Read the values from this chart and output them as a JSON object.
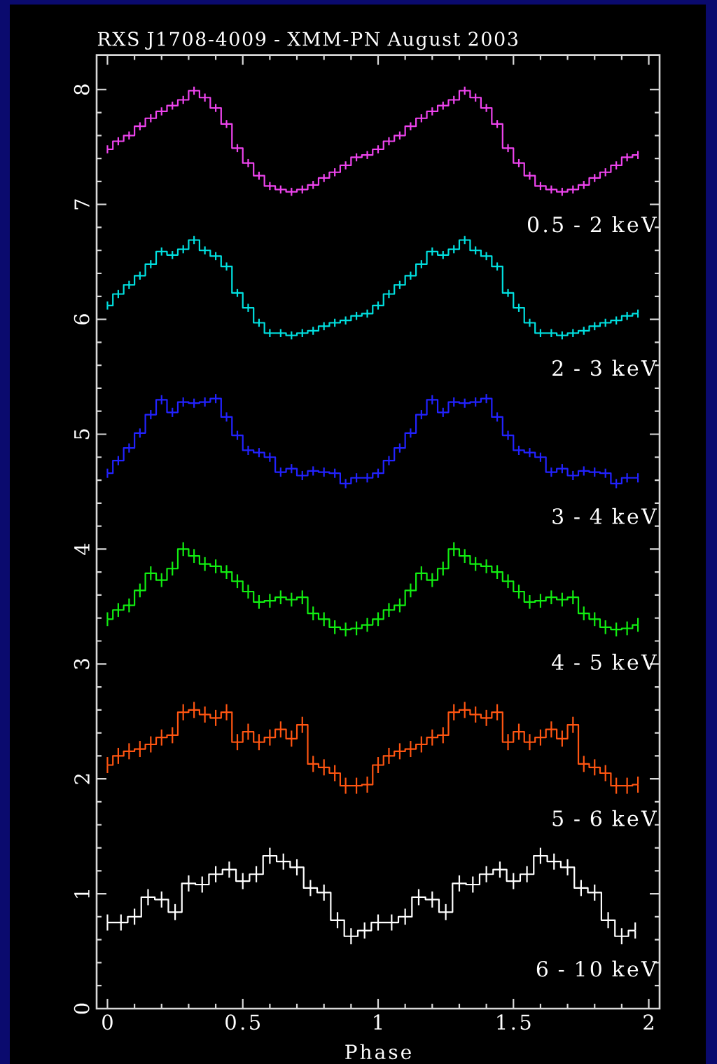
{
  "chart_data": {
    "type": "step",
    "title": "RXS J1708-4009 - XMM-PN August 2003",
    "xlabel": "Phase",
    "xlim": [
      -0.04,
      2.04
    ],
    "ylim": [
      0,
      8.3
    ],
    "xticks": [
      0,
      0.5,
      1,
      1.5,
      2
    ],
    "yticks": [
      0,
      1,
      2,
      3,
      4,
      5,
      6,
      7,
      8
    ],
    "x": [
      0,
      0.04,
      0.08,
      0.12,
      0.16,
      0.2,
      0.24,
      0.28,
      0.32,
      0.36,
      0.4,
      0.44,
      0.48,
      0.52,
      0.56,
      0.6,
      0.64,
      0.68,
      0.72,
      0.76,
      0.8,
      0.84,
      0.88,
      0.92,
      0.96,
      1,
      1.04,
      1.08,
      1.12,
      1.16,
      1.2,
      1.24,
      1.28,
      1.32,
      1.36,
      1.4,
      1.44,
      1.48,
      1.52,
      1.56,
      1.6,
      1.64,
      1.68,
      1.72,
      1.76,
      1.8,
      1.84,
      1.88,
      1.92,
      1.96
    ],
    "series": [
      {
        "name": "0.5 - 2 keV",
        "color": "#ee44ee",
        "values": [
          7.48,
          7.55,
          7.6,
          7.68,
          7.75,
          7.81,
          7.86,
          7.91,
          7.99,
          7.93,
          7.84,
          7.7,
          7.49,
          7.36,
          7.25,
          7.16,
          7.13,
          7.11,
          7.13,
          7.17,
          7.23,
          7.28,
          7.34,
          7.41,
          7.43,
          7.48,
          7.55,
          7.6,
          7.68,
          7.75,
          7.81,
          7.86,
          7.91,
          7.99,
          7.93,
          7.84,
          7.7,
          7.49,
          7.36,
          7.25,
          7.16,
          7.13,
          7.11,
          7.13,
          7.17,
          7.23,
          7.28,
          7.34,
          7.41,
          7.43
        ],
        "errors": [
          0.035,
          0.035,
          0.035,
          0.035,
          0.035,
          0.035,
          0.035,
          0.035,
          0.035,
          0.035,
          0.035,
          0.035,
          0.035,
          0.035,
          0.035,
          0.035,
          0.035,
          0.035,
          0.035,
          0.035,
          0.035,
          0.035,
          0.035,
          0.035,
          0.035,
          0.035,
          0.035,
          0.035,
          0.035,
          0.035,
          0.035,
          0.035,
          0.035,
          0.035,
          0.035,
          0.035,
          0.035,
          0.035,
          0.035,
          0.035,
          0.035,
          0.035,
          0.035,
          0.035,
          0.035,
          0.035,
          0.035,
          0.035,
          0.035,
          0.035
        ]
      },
      {
        "name": "2 - 3 keV",
        "color": "#00e0e0",
        "values": [
          6.12,
          6.22,
          6.3,
          6.38,
          6.48,
          6.59,
          6.56,
          6.61,
          6.69,
          6.6,
          6.55,
          6.46,
          6.23,
          6.1,
          5.97,
          5.88,
          5.88,
          5.86,
          5.88,
          5.9,
          5.94,
          5.97,
          5.99,
          6.03,
          6.05,
          6.12,
          6.22,
          6.3,
          6.38,
          6.48,
          6.59,
          6.56,
          6.61,
          6.69,
          6.6,
          6.55,
          6.46,
          6.23,
          6.1,
          5.97,
          5.88,
          5.88,
          5.86,
          5.88,
          5.9,
          5.94,
          5.97,
          5.99,
          6.03,
          6.05
        ],
        "errors": [
          0.035,
          0.035,
          0.035,
          0.035,
          0.035,
          0.035,
          0.035,
          0.035,
          0.035,
          0.035,
          0.035,
          0.035,
          0.035,
          0.035,
          0.035,
          0.035,
          0.035,
          0.035,
          0.035,
          0.035,
          0.035,
          0.035,
          0.035,
          0.035,
          0.035,
          0.035,
          0.035,
          0.035,
          0.035,
          0.035,
          0.035,
          0.035,
          0.035,
          0.035,
          0.035,
          0.035,
          0.035,
          0.035,
          0.035,
          0.035,
          0.035,
          0.035,
          0.035,
          0.035,
          0.035,
          0.035,
          0.035,
          0.035,
          0.035,
          0.035
        ]
      },
      {
        "name": "3 - 4 keV",
        "color": "#2222ff",
        "values": [
          4.66,
          4.77,
          4.88,
          5.01,
          5.17,
          5.3,
          5.19,
          5.28,
          5.27,
          5.28,
          5.31,
          5.15,
          4.99,
          4.86,
          4.84,
          4.8,
          4.67,
          4.7,
          4.64,
          4.68,
          4.67,
          4.66,
          4.57,
          4.62,
          4.62,
          4.66,
          4.77,
          4.88,
          5.01,
          5.17,
          5.3,
          5.19,
          5.28,
          5.27,
          5.28,
          5.31,
          5.15,
          4.99,
          4.86,
          4.84,
          4.8,
          4.67,
          4.7,
          4.64,
          4.68,
          4.67,
          4.66,
          4.57,
          4.62,
          4.62
        ],
        "errors": [
          0.04,
          0.04,
          0.04,
          0.04,
          0.04,
          0.04,
          0.04,
          0.04,
          0.04,
          0.04,
          0.04,
          0.04,
          0.04,
          0.04,
          0.04,
          0.04,
          0.04,
          0.04,
          0.04,
          0.04,
          0.04,
          0.04,
          0.04,
          0.04,
          0.04,
          0.04,
          0.04,
          0.04,
          0.04,
          0.04,
          0.04,
          0.04,
          0.04,
          0.04,
          0.04,
          0.04,
          0.04,
          0.04,
          0.04,
          0.04,
          0.04,
          0.04,
          0.04,
          0.04,
          0.04,
          0.04,
          0.04,
          0.04,
          0.04,
          0.04
        ]
      },
      {
        "name": "4 - 5 keV",
        "color": "#11ee11",
        "values": [
          3.39,
          3.47,
          3.51,
          3.64,
          3.79,
          3.73,
          3.83,
          4.0,
          3.94,
          3.87,
          3.85,
          3.8,
          3.72,
          3.63,
          3.54,
          3.55,
          3.58,
          3.56,
          3.58,
          3.44,
          3.39,
          3.32,
          3.3,
          3.31,
          3.34,
          3.39,
          3.47,
          3.51,
          3.64,
          3.79,
          3.73,
          3.83,
          4.0,
          3.94,
          3.87,
          3.85,
          3.8,
          3.72,
          3.63,
          3.54,
          3.55,
          3.58,
          3.56,
          3.58,
          3.44,
          3.39,
          3.32,
          3.3,
          3.31,
          3.34
        ],
        "errors": [
          0.06,
          0.06,
          0.06,
          0.06,
          0.06,
          0.06,
          0.06,
          0.06,
          0.06,
          0.06,
          0.06,
          0.06,
          0.06,
          0.06,
          0.06,
          0.06,
          0.06,
          0.06,
          0.06,
          0.06,
          0.06,
          0.06,
          0.06,
          0.06,
          0.06,
          0.06,
          0.06,
          0.06,
          0.06,
          0.06,
          0.06,
          0.06,
          0.06,
          0.06,
          0.06,
          0.06,
          0.06,
          0.06,
          0.06,
          0.06,
          0.06,
          0.06,
          0.06,
          0.06,
          0.06,
          0.06,
          0.06,
          0.06,
          0.06,
          0.06
        ]
      },
      {
        "name": "5 - 6 keV",
        "color": "#ff5511",
        "values": [
          2.12,
          2.2,
          2.24,
          2.26,
          2.3,
          2.36,
          2.38,
          2.58,
          2.6,
          2.56,
          2.53,
          2.58,
          2.32,
          2.41,
          2.32,
          2.36,
          2.43,
          2.35,
          2.47,
          2.13,
          2.1,
          2.05,
          1.94,
          1.94,
          1.95,
          2.12,
          2.2,
          2.24,
          2.26,
          2.3,
          2.36,
          2.38,
          2.58,
          2.6,
          2.56,
          2.53,
          2.58,
          2.32,
          2.41,
          2.32,
          2.36,
          2.43,
          2.35,
          2.47,
          2.13,
          2.1,
          2.05,
          1.94,
          1.94,
          1.95
        ],
        "errors": [
          0.07,
          0.07,
          0.07,
          0.07,
          0.07,
          0.07,
          0.07,
          0.07,
          0.07,
          0.07,
          0.07,
          0.07,
          0.07,
          0.07,
          0.07,
          0.07,
          0.07,
          0.07,
          0.07,
          0.07,
          0.07,
          0.07,
          0.07,
          0.07,
          0.07,
          0.07,
          0.07,
          0.07,
          0.07,
          0.07,
          0.07,
          0.07,
          0.07,
          0.07,
          0.07,
          0.07,
          0.07,
          0.07,
          0.07,
          0.07,
          0.07,
          0.07,
          0.07,
          0.07,
          0.07,
          0.07,
          0.07,
          0.07,
          0.07,
          0.07
        ]
      },
      {
        "name": "6 - 10 keV",
        "color": "#ffffff",
        "x": [
          0,
          0.05,
          0.1,
          0.15,
          0.2,
          0.25,
          0.3,
          0.35,
          0.4,
          0.45,
          0.5,
          0.55,
          0.6,
          0.65,
          0.7,
          0.75,
          0.8,
          0.85,
          0.9,
          0.95,
          1,
          1.05,
          1.1,
          1.15,
          1.2,
          1.25,
          1.3,
          1.35,
          1.4,
          1.45,
          1.5,
          1.55,
          1.6,
          1.65,
          1.7,
          1.75,
          1.8,
          1.85,
          1.9,
          1.95
        ],
        "values": [
          0.75,
          0.75,
          0.8,
          0.97,
          0.95,
          0.84,
          1.09,
          1.08,
          1.17,
          1.21,
          1.11,
          1.17,
          1.33,
          1.28,
          1.23,
          1.05,
          1.01,
          0.77,
          0.63,
          0.68,
          0.75,
          0.75,
          0.8,
          0.97,
          0.95,
          0.84,
          1.09,
          1.08,
          1.17,
          1.21,
          1.11,
          1.17,
          1.33,
          1.28,
          1.23,
          1.05,
          1.01,
          0.77,
          0.63,
          0.68
        ],
        "errors": [
          0.07,
          0.07,
          0.07,
          0.07,
          0.07,
          0.07,
          0.07,
          0.07,
          0.07,
          0.07,
          0.07,
          0.07,
          0.07,
          0.07,
          0.07,
          0.07,
          0.07,
          0.07,
          0.07,
          0.07,
          0.07,
          0.07,
          0.07,
          0.07,
          0.07,
          0.07,
          0.07,
          0.07,
          0.07,
          0.07,
          0.07,
          0.07,
          0.07,
          0.07,
          0.07,
          0.07,
          0.07,
          0.07,
          0.07,
          0.07
        ]
      }
    ]
  }
}
